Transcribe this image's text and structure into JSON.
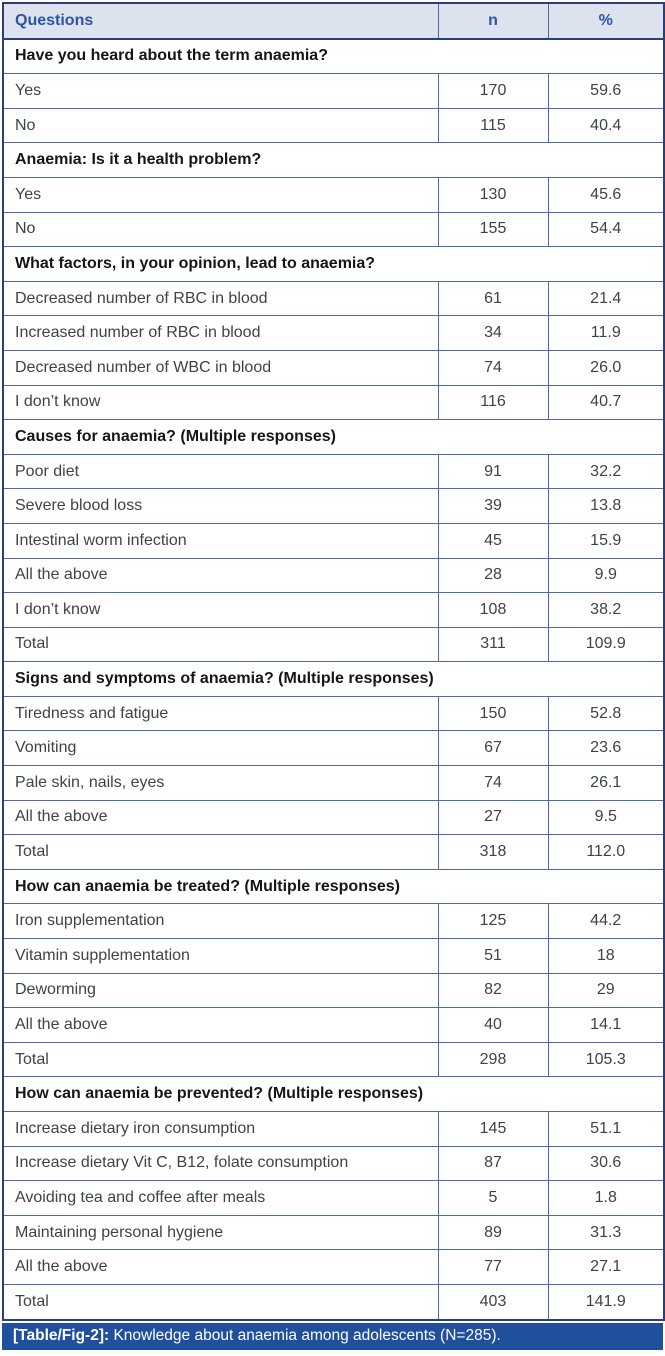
{
  "colors": {
    "outer_border": "#2b3d7d",
    "inner_border": "#4e69a7",
    "header_bg": "#dde3ee",
    "header_text": "#2c55a4",
    "section_text": "#161616",
    "body_text": "#3f4248",
    "caption_bg": "#1f4f9d",
    "caption_text": "#ffffff",
    "page_bg": "#ffffff"
  },
  "chart_data": {
    "type": "table",
    "columns": [
      "Questions",
      "n",
      "%"
    ],
    "sections": [
      {
        "header": "Have you heard about the term anaemia?",
        "rows": [
          [
            "Yes",
            "170",
            "59.6"
          ],
          [
            "No",
            "115",
            "40.4"
          ]
        ]
      },
      {
        "header": "Anaemia: Is it a health problem?",
        "rows": [
          [
            "Yes",
            "130",
            "45.6"
          ],
          [
            "No",
            "155",
            "54.4"
          ]
        ]
      },
      {
        "header": "What factors, in your opinion, lead to anaemia?",
        "rows": [
          [
            "Decreased number of RBC in blood",
            "61",
            "21.4"
          ],
          [
            "Increased number of RBC in blood",
            "34",
            "11.9"
          ],
          [
            "Decreased number of WBC in blood",
            "74",
            "26.0"
          ],
          [
            "I don’t know",
            "116",
            "40.7"
          ]
        ]
      },
      {
        "header": "Causes for anaemia? (Multiple responses)",
        "rows": [
          [
            "Poor diet",
            "91",
            "32.2"
          ],
          [
            "Severe blood loss",
            "39",
            "13.8"
          ],
          [
            "Intestinal worm infection",
            "45",
            "15.9"
          ],
          [
            "All the above",
            "28",
            "9.9"
          ],
          [
            "I don’t know",
            "108",
            "38.2"
          ],
          [
            "Total",
            "311",
            "109.9"
          ]
        ]
      },
      {
        "header": "Signs and symptoms of anaemia? (Multiple responses)",
        "rows": [
          [
            "Tiredness and fatigue",
            "150",
            "52.8"
          ],
          [
            "Vomiting",
            "67",
            "23.6"
          ],
          [
            "Pale skin, nails, eyes",
            "74",
            "26.1"
          ],
          [
            "All the above",
            "27",
            "9.5"
          ],
          [
            "Total",
            "318",
            "112.0"
          ]
        ]
      },
      {
        "header": "How can anaemia be treated? (Multiple responses)",
        "rows": [
          [
            "Iron supplementation",
            "125",
            "44.2"
          ],
          [
            "Vitamin supplementation",
            "51",
            "18"
          ],
          [
            "Deworming",
            "82",
            "29"
          ],
          [
            "All the above",
            "40",
            "14.1"
          ],
          [
            "Total",
            "298",
            "105.3"
          ]
        ]
      },
      {
        "header": "How can anaemia be prevented? (Multiple responses)",
        "rows": [
          [
            "Increase dietary iron consumption",
            "145",
            "51.1"
          ],
          [
            "Increase dietary Vit C, B12, folate consumption",
            "87",
            "30.6"
          ],
          [
            "Avoiding tea and coffee after meals",
            "5",
            "1.8"
          ],
          [
            "Maintaining personal hygiene",
            "89",
            "31.3"
          ],
          [
            "All the above",
            "77",
            "27.1"
          ],
          [
            "Total",
            "403",
            "141.9"
          ]
        ]
      }
    ],
    "caption_tag": "[Table/Fig-2]:",
    "caption_text": "Knowledge about anaemia among adolescents (N=285)."
  }
}
